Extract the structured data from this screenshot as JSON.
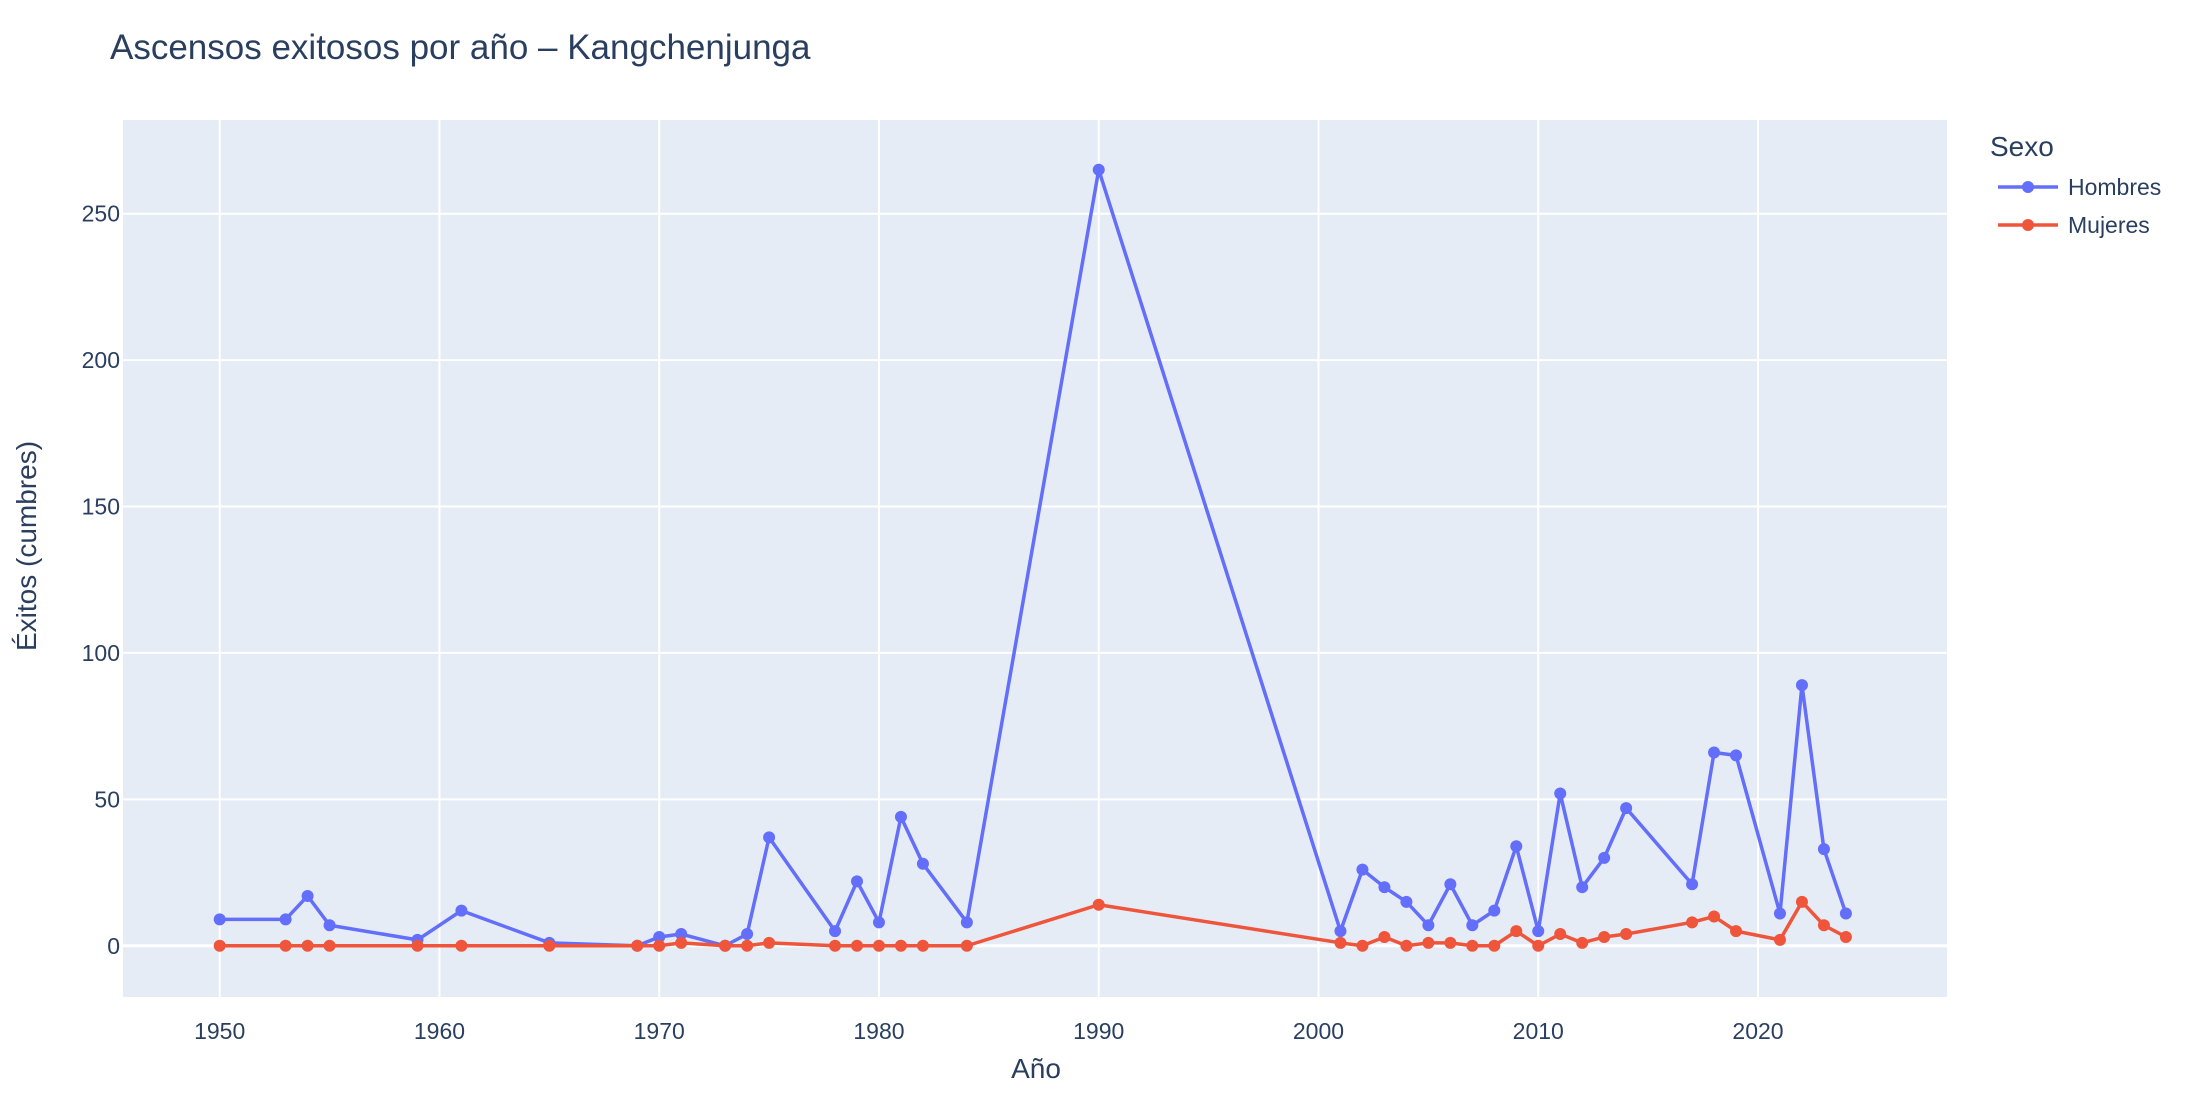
{
  "chart_data": {
    "type": "line",
    "title": "Ascensos exitosos por año – Kangchenjunga",
    "xlabel": "Año",
    "ylabel": "Éxitos (cumbres)",
    "xlim": [
      1945.6,
      2028.6
    ],
    "ylim": [
      -17.5,
      282
    ],
    "x_ticks": [
      1950,
      1960,
      1970,
      1980,
      1990,
      2000,
      2010,
      2020
    ],
    "y_ticks": [
      0,
      50,
      100,
      150,
      200,
      250
    ],
    "grid": true,
    "plot_background": "#E5ECF6",
    "legend": {
      "title": "Sexo",
      "position": "top-right-outside"
    },
    "series": [
      {
        "name": "Hombres",
        "color": "#636EFA",
        "x": [
          1950,
          1953,
          1954,
          1955,
          1959,
          1961,
          1965,
          1969,
          1970,
          1971,
          1973,
          1974,
          1975,
          1978,
          1979,
          1980,
          1981,
          1982,
          1984,
          1990,
          2001,
          2002,
          2003,
          2004,
          2005,
          2006,
          2007,
          2008,
          2009,
          2010,
          2011,
          2012,
          2013,
          2014,
          2017,
          2018,
          2019,
          2021,
          2022,
          2023,
          2024
        ],
        "y": [
          9,
          9,
          17,
          7,
          2,
          12,
          1,
          0,
          3,
          4,
          0,
          4,
          37,
          5,
          22,
          8,
          44,
          28,
          8,
          265,
          5,
          26,
          20,
          15,
          7,
          21,
          7,
          12,
          34,
          5,
          52,
          20,
          30,
          47,
          21,
          66,
          65,
          11,
          89,
          33,
          11
        ]
      },
      {
        "name": "Mujeres",
        "color": "#EF553B",
        "x": [
          1950,
          1953,
          1954,
          1955,
          1959,
          1961,
          1965,
          1969,
          1970,
          1971,
          1973,
          1974,
          1975,
          1978,
          1979,
          1980,
          1981,
          1982,
          1984,
          1990,
          2001,
          2002,
          2003,
          2004,
          2005,
          2006,
          2007,
          2008,
          2009,
          2010,
          2011,
          2012,
          2013,
          2014,
          2017,
          2018,
          2019,
          2021,
          2022,
          2023,
          2024
        ],
        "y": [
          0,
          0,
          0,
          0,
          0,
          0,
          0,
          0,
          0,
          1,
          0,
          0,
          1,
          0,
          0,
          0,
          0,
          0,
          0,
          14,
          1,
          0,
          3,
          0,
          1,
          1,
          0,
          0,
          5,
          0,
          4,
          1,
          3,
          4,
          8,
          10,
          5,
          2,
          15,
          7,
          3
        ]
      }
    ]
  }
}
